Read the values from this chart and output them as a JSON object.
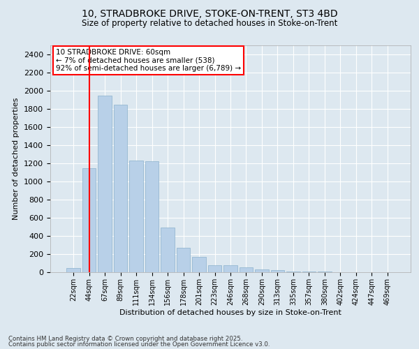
{
  "title_line1": "10, STRADBROKE DRIVE, STOKE-ON-TRENT, ST3 4BD",
  "title_line2": "Size of property relative to detached houses in Stoke-on-Trent",
  "xlabel": "Distribution of detached houses by size in Stoke-on-Trent",
  "ylabel": "Number of detached properties",
  "categories": [
    "22sqm",
    "44sqm",
    "67sqm",
    "89sqm",
    "111sqm",
    "134sqm",
    "156sqm",
    "178sqm",
    "201sqm",
    "223sqm",
    "246sqm",
    "268sqm",
    "290sqm",
    "313sqm",
    "335sqm",
    "357sqm",
    "380sqm",
    "402sqm",
    "424sqm",
    "447sqm",
    "469sqm"
  ],
  "values": [
    50,
    1150,
    1950,
    1850,
    1230,
    1220,
    490,
    270,
    170,
    80,
    75,
    55,
    30,
    20,
    10,
    8,
    5,
    3,
    2,
    1,
    1
  ],
  "bar_color": "#b8d0e8",
  "bar_edge_color": "#8ab0cc",
  "vline_x": 1,
  "vline_color": "red",
  "annotation_text": "10 STRADBROKE DRIVE: 60sqm\n← 7% of detached houses are smaller (538)\n92% of semi-detached houses are larger (6,789) →",
  "annotation_box_color": "white",
  "annotation_box_edge": "red",
  "bg_color": "#dde8f0",
  "grid_color": "white",
  "footer_line1": "Contains HM Land Registry data © Crown copyright and database right 2025.",
  "footer_line2": "Contains public sector information licensed under the Open Government Licence v3.0.",
  "ylim": [
    0,
    2500
  ],
  "yticks": [
    0,
    200,
    400,
    600,
    800,
    1000,
    1200,
    1400,
    1600,
    1800,
    2000,
    2200,
    2400
  ]
}
